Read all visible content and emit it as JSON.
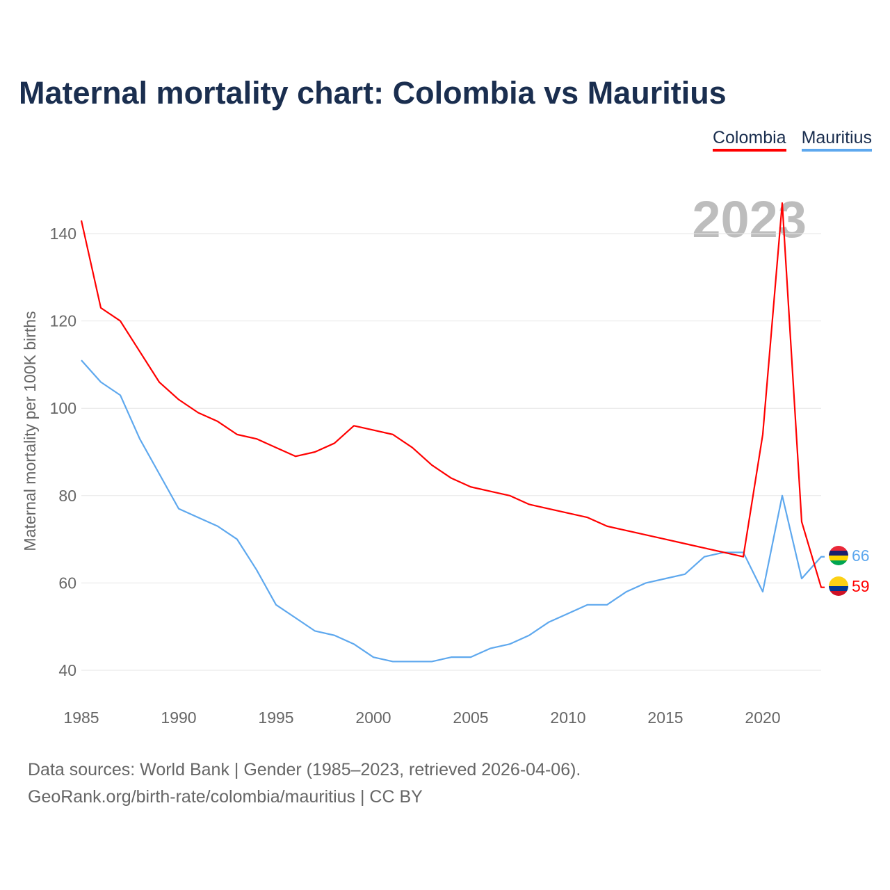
{
  "title": "Maternal mortality chart: Colombia vs Mauritius",
  "year_watermark": "2023",
  "source_line1": "Data sources: World Bank | Gender (1985–2023, retrieved 2026-04-06).",
  "source_line2": "GeoRank.org/birth-rate/colombia/mauritius | CC BY",
  "chart_data": {
    "type": "line",
    "title": "Maternal mortality chart: Colombia vs Mauritius",
    "xlabel": "",
    "ylabel": "Maternal mortality per 100K births",
    "xlim": [
      1985,
      2023
    ],
    "ylim": [
      40,
      140
    ],
    "x_ticks": [
      1985,
      1990,
      1995,
      2000,
      2005,
      2010,
      2015,
      2020
    ],
    "y_ticks": [
      40,
      60,
      80,
      100,
      120,
      140
    ],
    "grid": true,
    "legend_placement": "top-right",
    "x": [
      1985,
      1986,
      1987,
      1988,
      1989,
      1990,
      1991,
      1992,
      1993,
      1994,
      1995,
      1996,
      1997,
      1998,
      1999,
      2000,
      2001,
      2002,
      2003,
      2004,
      2005,
      2006,
      2007,
      2008,
      2009,
      2010,
      2011,
      2012,
      2013,
      2014,
      2015,
      2016,
      2017,
      2018,
      2019,
      2020,
      2021,
      2022,
      2023
    ],
    "series": [
      {
        "name": "Colombia",
        "color": "#ff0000",
        "end_label": "59",
        "values": [
          143,
          123,
          120,
          113,
          106,
          102,
          99,
          97,
          94,
          93,
          91,
          89,
          90,
          92,
          96,
          95,
          94,
          91,
          87,
          84,
          82,
          81,
          80,
          78,
          77,
          76,
          75,
          73,
          72,
          71,
          70,
          69,
          68,
          67,
          66,
          94,
          147,
          74,
          59
        ]
      },
      {
        "name": "Mauritius",
        "color": "#5ea8ee",
        "end_label": "66",
        "values": [
          111,
          106,
          103,
          93,
          85,
          77,
          75,
          73,
          70,
          63,
          55,
          52,
          49,
          48,
          46,
          43,
          42,
          42,
          42,
          43,
          43,
          45,
          46,
          48,
          51,
          53,
          55,
          55,
          58,
          60,
          61,
          62,
          66,
          67,
          67,
          58,
          80,
          61,
          66
        ]
      }
    ]
  }
}
